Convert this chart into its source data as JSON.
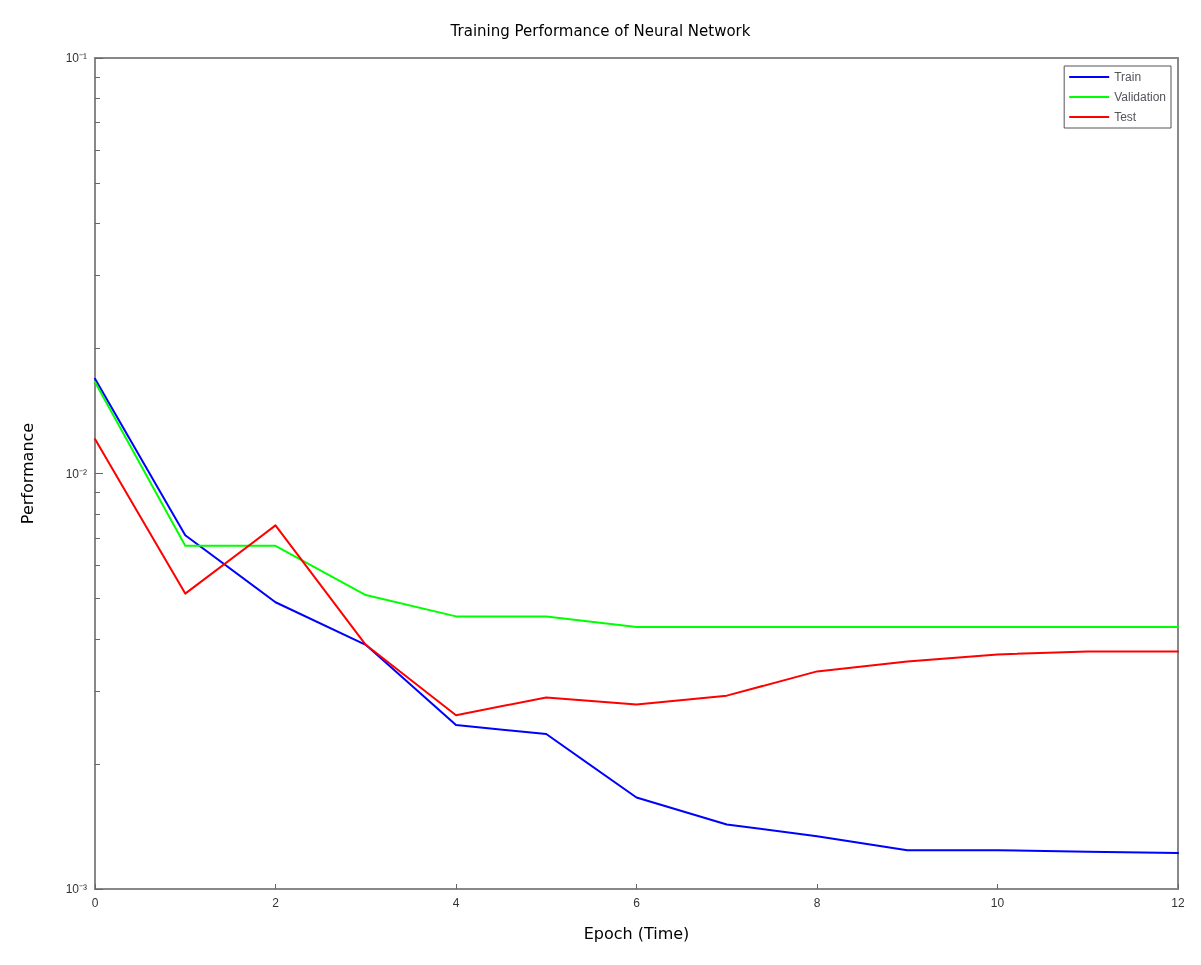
{
  "chart_data": {
    "type": "line",
    "title": "Training Performance of Neural Network",
    "xlabel": "Epoch (Time)",
    "ylabel": "Performance",
    "x": [
      0,
      1,
      2,
      3,
      4,
      5,
      6,
      7,
      8,
      9,
      10,
      11,
      12
    ],
    "series": [
      {
        "name": "Train",
        "color": "#0000ff",
        "values": [
          0.0169,
          0.0071,
          0.0049,
          0.00387,
          0.00248,
          0.00236,
          0.00166,
          0.00143,
          0.00134,
          0.00124,
          0.00124,
          0.00123,
          0.00122
        ]
      },
      {
        "name": "Validation",
        "color": "#00ff00",
        "values": [
          0.0166,
          0.0067,
          0.0067,
          0.0051,
          0.00453,
          0.00453,
          0.00427,
          0.00427,
          0.00427,
          0.00427,
          0.00427,
          0.00427,
          0.00427
        ]
      },
      {
        "name": "Test",
        "color": "#ff0000",
        "values": [
          0.0121,
          0.00514,
          0.0075,
          0.00387,
          0.00262,
          0.00289,
          0.00278,
          0.00292,
          0.00334,
          0.00353,
          0.00367,
          0.00373,
          0.00373
        ]
      }
    ],
    "log": "y",
    "xlim": [
      0,
      12
    ],
    "xticks": [
      0,
      2,
      4,
      6,
      8,
      10,
      12
    ],
    "ylim": [
      0.001,
      0.1
    ],
    "yticks": [
      {
        "value": 0.001,
        "label": "10⁻³"
      },
      {
        "value": 0.01,
        "label": "10⁻²"
      },
      {
        "value": 0.1,
        "label": "10⁻¹"
      }
    ],
    "legend": "top right",
    "marker": "none",
    "line_style": "solid",
    "grid": false
  }
}
